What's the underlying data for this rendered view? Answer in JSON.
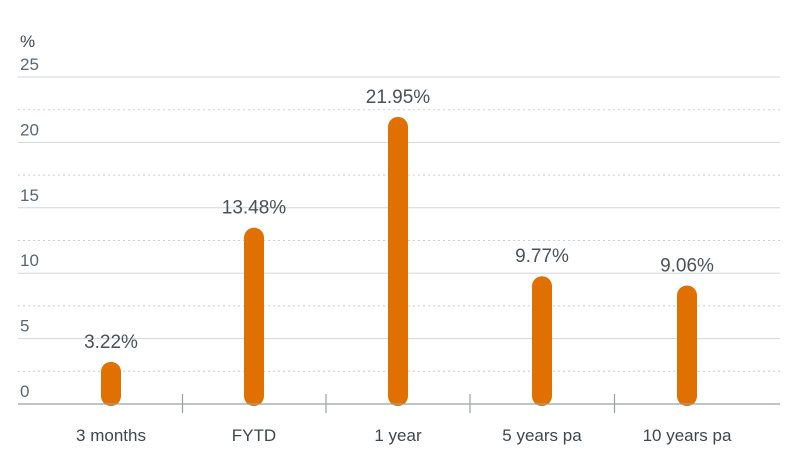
{
  "chart_data": {
    "type": "bar",
    "unit_label": "%",
    "categories": [
      "3 months",
      "FYTD",
      "1 year",
      "5 years pa",
      "10 years pa"
    ],
    "values": [
      3.22,
      13.48,
      21.95,
      9.77,
      9.06
    ],
    "data_labels": [
      "3.22%",
      "13.48%",
      "21.95%",
      "9.77%",
      "9.06%"
    ],
    "ylim": [
      0,
      25
    ],
    "yticks": [
      0,
      5,
      10,
      15,
      20,
      25
    ],
    "grid": true,
    "colors": {
      "bar": "#e07000",
      "grid_solid": "#d3d6d8",
      "grid_dotted": "#c9cdd0",
      "axis": "#9aa1a6"
    }
  }
}
